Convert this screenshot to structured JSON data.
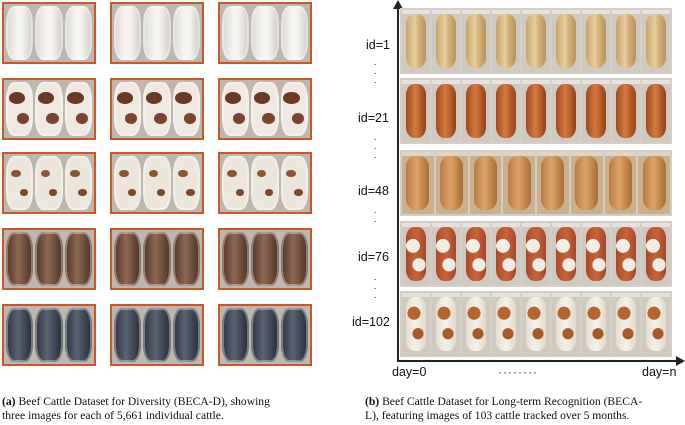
{
  "panel_a": {
    "caption_tag": "(a)",
    "caption_line1": "Beef Cattle Dataset for Diversity (BECA-D), showing",
    "caption_line2": "three images for each of 5,661 individual cattle."
  },
  "panel_b": {
    "ids": [
      "id=1",
      "id=21",
      "id=48",
      "id=76",
      "id=102"
    ],
    "x_start": "day=0",
    "x_end": "day=n",
    "x_ellipsis": "········",
    "caption_tag": "(b)",
    "caption_line1": "Beef Cattle Dataset for Long-term Recognition (BECA-",
    "caption_line2": "L), featuring images of 103 cattle tracked over 5 months."
  },
  "colors": {
    "frame": "#c8582c",
    "axis": "#222222"
  }
}
